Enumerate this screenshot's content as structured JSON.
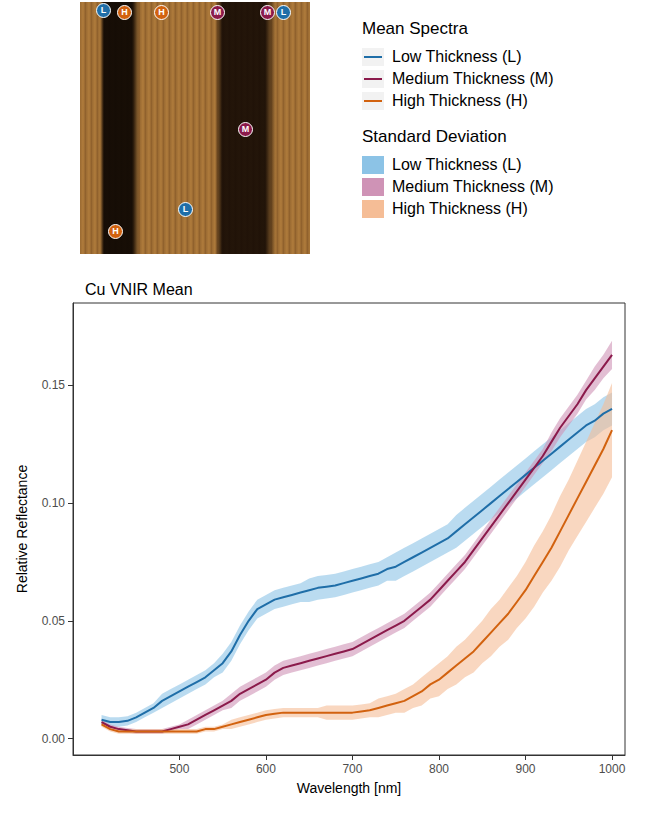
{
  "chart_data": {
    "type": "line",
    "title": "Cu VNIR Mean",
    "x_label": "Wavelength [nm]",
    "y_label": "Relative Reflectance",
    "legend_titles": [
      "Mean Spectra",
      "Standard Deviation"
    ],
    "legend": "top right",
    "grid": false,
    "image_markers": [
      "L",
      "H",
      "H",
      "M",
      "M",
      "L",
      "M",
      "L",
      "H"
    ],
    "x": [
      410,
      420,
      430,
      440,
      450,
      460,
      470,
      480,
      490,
      500,
      510,
      520,
      530,
      540,
      550,
      560,
      570,
      580,
      590,
      600,
      610,
      620,
      630,
      640,
      650,
      660,
      670,
      680,
      690,
      700,
      710,
      720,
      730,
      740,
      750,
      760,
      770,
      780,
      790,
      800,
      810,
      820,
      830,
      840,
      850,
      860,
      870,
      880,
      890,
      900,
      910,
      920,
      930,
      940,
      950,
      960,
      970,
      980,
      990,
      1000
    ],
    "xlim": [
      377,
      1015
    ],
    "xticks": [
      500,
      600,
      700,
      800,
      900,
      1000
    ],
    "ylim": [
      -0.007,
      0.185
    ],
    "yticks": [
      {
        "value": 0,
        "label": "0.00"
      },
      {
        "value": 0.05,
        "label": "0.05"
      },
      {
        "value": 0.1,
        "label": "0.10"
      },
      {
        "value": 0.15,
        "label": "0.15"
      }
    ],
    "series": [
      {
        "name": "Low Thickness (L)",
        "color": "#1f6ea8",
        "values": [
          0.008,
          0.007,
          0.007,
          0.0075,
          0.009,
          0.011,
          0.013,
          0.016,
          0.018,
          0.02,
          0.022,
          0.024,
          0.026,
          0.029,
          0.032,
          0.037,
          0.044,
          0.05,
          0.055,
          0.057,
          0.059,
          0.06,
          0.061,
          0.062,
          0.063,
          0.064,
          0.0645,
          0.065,
          0.066,
          0.067,
          0.068,
          0.069,
          0.07,
          0.072,
          0.073,
          0.075,
          0.077,
          0.079,
          0.081,
          0.083,
          0.085,
          0.088,
          0.091,
          0.094,
          0.097,
          0.1,
          0.103,
          0.106,
          0.109,
          0.112,
          0.115,
          0.118,
          0.121,
          0.124,
          0.127,
          0.13,
          0.133,
          0.135,
          0.138,
          0.14
        ]
      },
      {
        "name": "Medium Thickness (M)",
        "color": "#8b1a4b",
        "values": [
          0.007,
          0.005,
          0.004,
          0.0035,
          0.003,
          0.003,
          0.003,
          0.003,
          0.004,
          0.005,
          0.006,
          0.008,
          0.01,
          0.012,
          0.014,
          0.016,
          0.019,
          0.021,
          0.023,
          0.025,
          0.028,
          0.03,
          0.031,
          0.032,
          0.033,
          0.034,
          0.035,
          0.036,
          0.037,
          0.038,
          0.04,
          0.042,
          0.044,
          0.046,
          0.048,
          0.05,
          0.053,
          0.056,
          0.059,
          0.063,
          0.067,
          0.071,
          0.075,
          0.08,
          0.085,
          0.09,
          0.095,
          0.1,
          0.105,
          0.11,
          0.115,
          0.12,
          0.126,
          0.132,
          0.137,
          0.142,
          0.148,
          0.153,
          0.158,
          0.163
        ]
      },
      {
        "name": "High Thickness (H)",
        "color": "#d2620f",
        "values": [
          0.006,
          0.004,
          0.003,
          0.003,
          0.003,
          0.003,
          0.003,
          0.003,
          0.003,
          0.003,
          0.003,
          0.003,
          0.004,
          0.004,
          0.005,
          0.006,
          0.007,
          0.008,
          0.009,
          0.01,
          0.0105,
          0.011,
          0.011,
          0.011,
          0.011,
          0.011,
          0.011,
          0.011,
          0.011,
          0.011,
          0.0115,
          0.012,
          0.013,
          0.014,
          0.015,
          0.016,
          0.018,
          0.02,
          0.023,
          0.025,
          0.028,
          0.031,
          0.034,
          0.037,
          0.041,
          0.045,
          0.049,
          0.053,
          0.058,
          0.063,
          0.069,
          0.075,
          0.081,
          0.088,
          0.095,
          0.102,
          0.109,
          0.116,
          0.123,
          0.131
        ]
      }
    ],
    "bands": [
      {
        "name": "Low Thickness (L)",
        "color": "#8cc3e6",
        "values": [
          0.002,
          0.002,
          0.002,
          0.002,
          0.002,
          0.002,
          0.002,
          0.003,
          0.003,
          0.003,
          0.003,
          0.003,
          0.003,
          0.003,
          0.004,
          0.004,
          0.004,
          0.004,
          0.004,
          0.004,
          0.004,
          0.004,
          0.004,
          0.004,
          0.005,
          0.005,
          0.005,
          0.005,
          0.005,
          0.005,
          0.005,
          0.005,
          0.005,
          0.005,
          0.006,
          0.006,
          0.006,
          0.006,
          0.006,
          0.006,
          0.006,
          0.007,
          0.007,
          0.007,
          0.007,
          0.007,
          0.007,
          0.007,
          0.007,
          0.007,
          0.007,
          0.007,
          0.007,
          0.007,
          0.007,
          0.007,
          0.007,
          0.007,
          0.007,
          0.007
        ]
      },
      {
        "name": "Medium Thickness (M)",
        "color": "#cf93b6",
        "values": [
          0.001,
          0.001,
          0.001,
          0.001,
          0.001,
          0.001,
          0.001,
          0.001,
          0.001,
          0.001,
          0.002,
          0.002,
          0.002,
          0.002,
          0.002,
          0.003,
          0.003,
          0.003,
          0.003,
          0.003,
          0.003,
          0.003,
          0.003,
          0.003,
          0.003,
          0.003,
          0.003,
          0.003,
          0.003,
          0.003,
          0.003,
          0.003,
          0.003,
          0.003,
          0.003,
          0.003,
          0.003,
          0.003,
          0.003,
          0.003,
          0.003,
          0.003,
          0.003,
          0.003,
          0.003,
          0.003,
          0.003,
          0.003,
          0.003,
          0.003,
          0.003,
          0.003,
          0.004,
          0.004,
          0.004,
          0.004,
          0.004,
          0.005,
          0.005,
          0.006
        ]
      },
      {
        "name": "High Thickness (H)",
        "color": "#f5bd96",
        "values": [
          0.001,
          0.001,
          0.001,
          0.001,
          0.001,
          0.001,
          0.001,
          0.001,
          0.001,
          0.001,
          0.001,
          0.001,
          0.001,
          0.001,
          0.001,
          0.002,
          0.002,
          0.002,
          0.002,
          0.002,
          0.002,
          0.002,
          0.002,
          0.002,
          0.002,
          0.002,
          0.003,
          0.003,
          0.003,
          0.003,
          0.003,
          0.003,
          0.004,
          0.004,
          0.004,
          0.005,
          0.005,
          0.006,
          0.006,
          0.007,
          0.007,
          0.008,
          0.008,
          0.009,
          0.009,
          0.01,
          0.01,
          0.011,
          0.011,
          0.012,
          0.013,
          0.013,
          0.014,
          0.015,
          0.015,
          0.016,
          0.017,
          0.018,
          0.019,
          0.02
        ]
      }
    ]
  }
}
